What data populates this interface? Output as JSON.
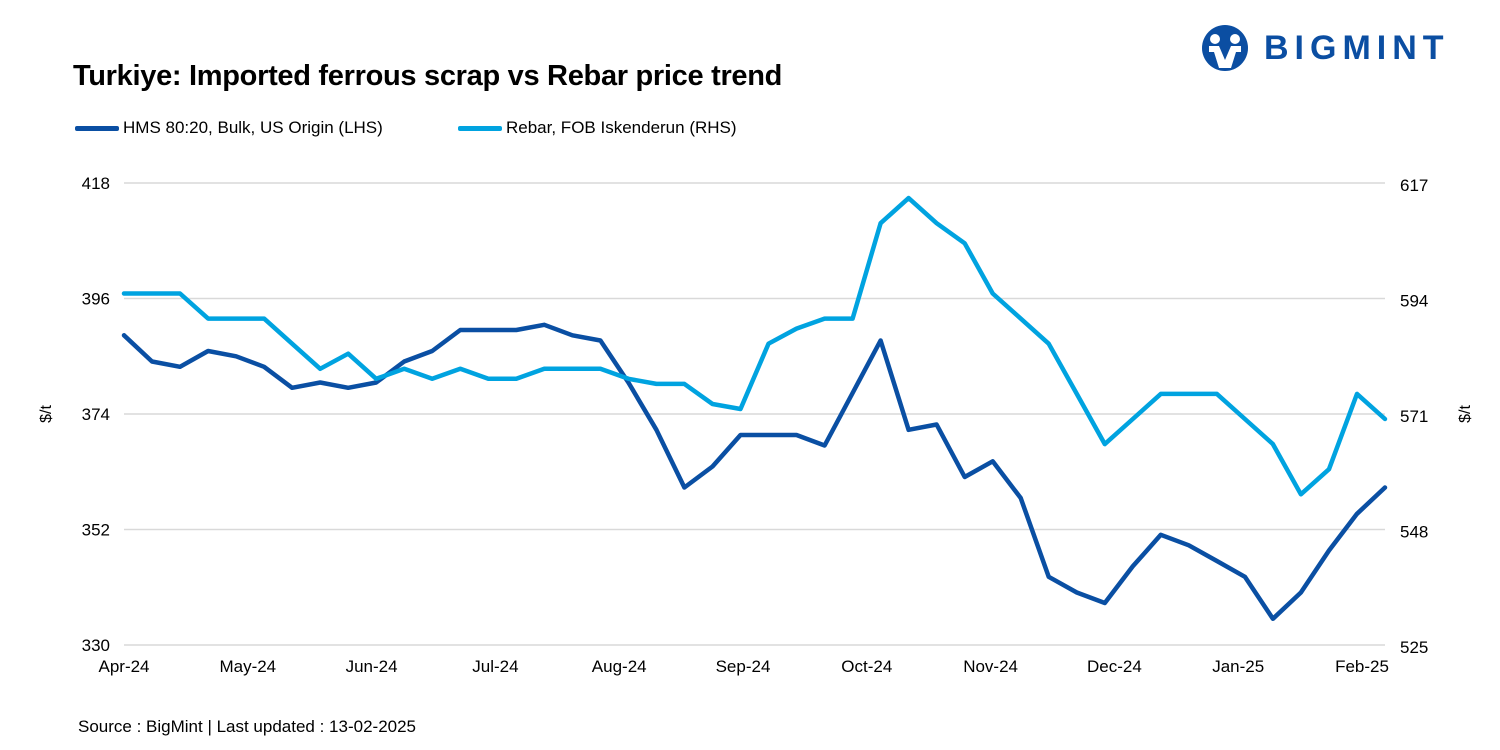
{
  "logo": {
    "text": "BIGMINT"
  },
  "source": "Source : BigMint | Last updated : 13-02-2025",
  "colors": {
    "hms": "#0a4fa3",
    "rebar": "#00a3e0",
    "grid": "#d9d9d9"
  },
  "chart_data": {
    "type": "line",
    "title": "Turkiye: Imported ferrous scrap vs Rebar price trend",
    "x_tick_labels": [
      "Apr-24",
      "May-24",
      "Jun-24",
      "Jul-24",
      "Aug-24",
      "Sep-24",
      "Oct-24",
      "Nov-24",
      "Dec-24",
      "Jan-25",
      "Feb-25"
    ],
    "y_left": {
      "label": "$/t",
      "ticks": [
        330,
        352,
        374,
        396,
        418
      ],
      "range": [
        330,
        418
      ]
    },
    "y_right": {
      "label": "$/t",
      "ticks": [
        525,
        548,
        571,
        594,
        617
      ],
      "range": [
        525,
        617
      ]
    },
    "grid": true,
    "legend_position": "top-left",
    "series": [
      {
        "name": "HMS 80:20, Bulk, US Origin (LHS)",
        "axis": "left",
        "color": "#0a4fa3",
        "values": [
          389,
          384,
          383,
          386,
          385,
          383,
          379,
          380,
          379,
          380,
          384,
          386,
          390,
          390,
          390,
          391,
          389,
          388,
          380,
          371,
          360,
          364,
          370,
          370,
          370,
          368,
          378,
          388,
          371,
          372,
          362,
          365,
          358,
          343,
          340,
          338,
          345,
          351,
          349,
          346,
          343,
          335,
          340,
          348,
          355,
          360
        ]
      },
      {
        "name": "Rebar, FOB Iskenderun (RHS)",
        "axis": "right",
        "color": "#00a3e0",
        "values": [
          595,
          595,
          595,
          590,
          590,
          590,
          585,
          580,
          583,
          578,
          580,
          578,
          580,
          578,
          578,
          580,
          580,
          580,
          578,
          577,
          577,
          573,
          572,
          585,
          588,
          590,
          590,
          609,
          614,
          609,
          605,
          595,
          590,
          585,
          575,
          565,
          570,
          575,
          575,
          575,
          570,
          565,
          555,
          560,
          575,
          570
        ]
      }
    ]
  }
}
